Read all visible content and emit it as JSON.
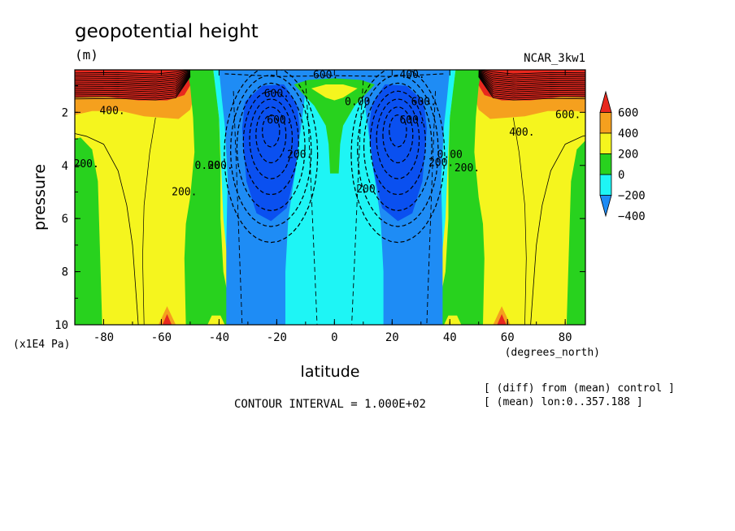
{
  "chart_data": {
    "type": "heatmap",
    "title": "geopotential height",
    "units": "(m)",
    "run_name": "NCAR_3kw1",
    "xlabel": "latitude",
    "xunits": "(degrees_north)",
    "ylabel": "pressure",
    "yunits": "(x1E4 Pa)",
    "xlim": [
      -90,
      87
    ],
    "ylim": [
      10,
      0.4
    ],
    "x_ticks": [
      -80,
      -60,
      -40,
      -20,
      0,
      20,
      40,
      60,
      80
    ],
    "x_tick_labels": [
      "-80",
      "-60",
      "-40",
      "-20",
      "0",
      "20",
      "40",
      "60",
      "80"
    ],
    "y_ticks": [
      2,
      4,
      6,
      8,
      10
    ],
    "y_tick_labels": [
      "2",
      "4",
      "6",
      "8",
      "10"
    ],
    "contour_interval_text": "CONTOUR INTERVAL = 1.000E+02",
    "notes": [
      "[ (diff) from (mean) control ]",
      "[ (mean) lon:0..357.188 ]"
    ],
    "colorbar": {
      "labels": [
        "600",
        "400",
        "200",
        "0",
        "−200",
        "−400"
      ],
      "colors": [
        "#e8281e",
        "#f5a01e",
        "#f5f51e",
        "#28d21e",
        "#1ef5f5",
        "#1e8cf5"
      ],
      "levels": [
        600,
        400,
        200,
        0,
        -200,
        -400
      ]
    },
    "band_colors": {
      "dark_blue": "#0a50f0",
      "blue": "#1e8cf5",
      "cyan": "#1ef5f5",
      "green": "#28d21e",
      "yellow": "#f5f51e",
      "orange": "#f5a01e",
      "red": "#e8281e"
    },
    "contour_labels": [
      {
        "text": "400.",
        "lat": -77,
        "p": 1.95
      },
      {
        "text": "200.",
        "lat": -86,
        "p": 3.95
      },
      {
        "text": "200.",
        "lat": -52,
        "p": 5.0
      },
      {
        "text": "0.00",
        "lat": -44,
        "p": 4.0
      },
      {
        "text": "200.",
        "lat": -39.5,
        "p": 4.0
      },
      {
        "text": "600.",
        "lat": -20,
        "p": 1.3
      },
      {
        "text": "600.",
        "lat": -19,
        "p": 2.3
      },
      {
        "text": "200.",
        "lat": -12,
        "p": 3.6
      },
      {
        "text": "600.",
        "lat": -3,
        "p": 0.6
      },
      {
        "text": "400.",
        "lat": 27,
        "p": 0.58
      },
      {
        "text": "0.00",
        "lat": 8,
        "p": 1.6
      },
      {
        "text": "200.",
        "lat": 12,
        "p": 4.9
      },
      {
        "text": "600.",
        "lat": 27,
        "p": 2.3
      },
      {
        "text": "600.",
        "lat": 31,
        "p": 1.6
      },
      {
        "text": "200.",
        "lat": 37,
        "p": 3.9
      },
      {
        "text": "0.00",
        "lat": 40,
        "p": 3.6
      },
      {
        "text": "200.",
        "lat": 46,
        "p": 4.1
      },
      {
        "text": "400.",
        "lat": 65,
        "p": 2.75
      },
      {
        "text": "600.",
        "lat": 81,
        "p": 2.1
      }
    ]
  }
}
